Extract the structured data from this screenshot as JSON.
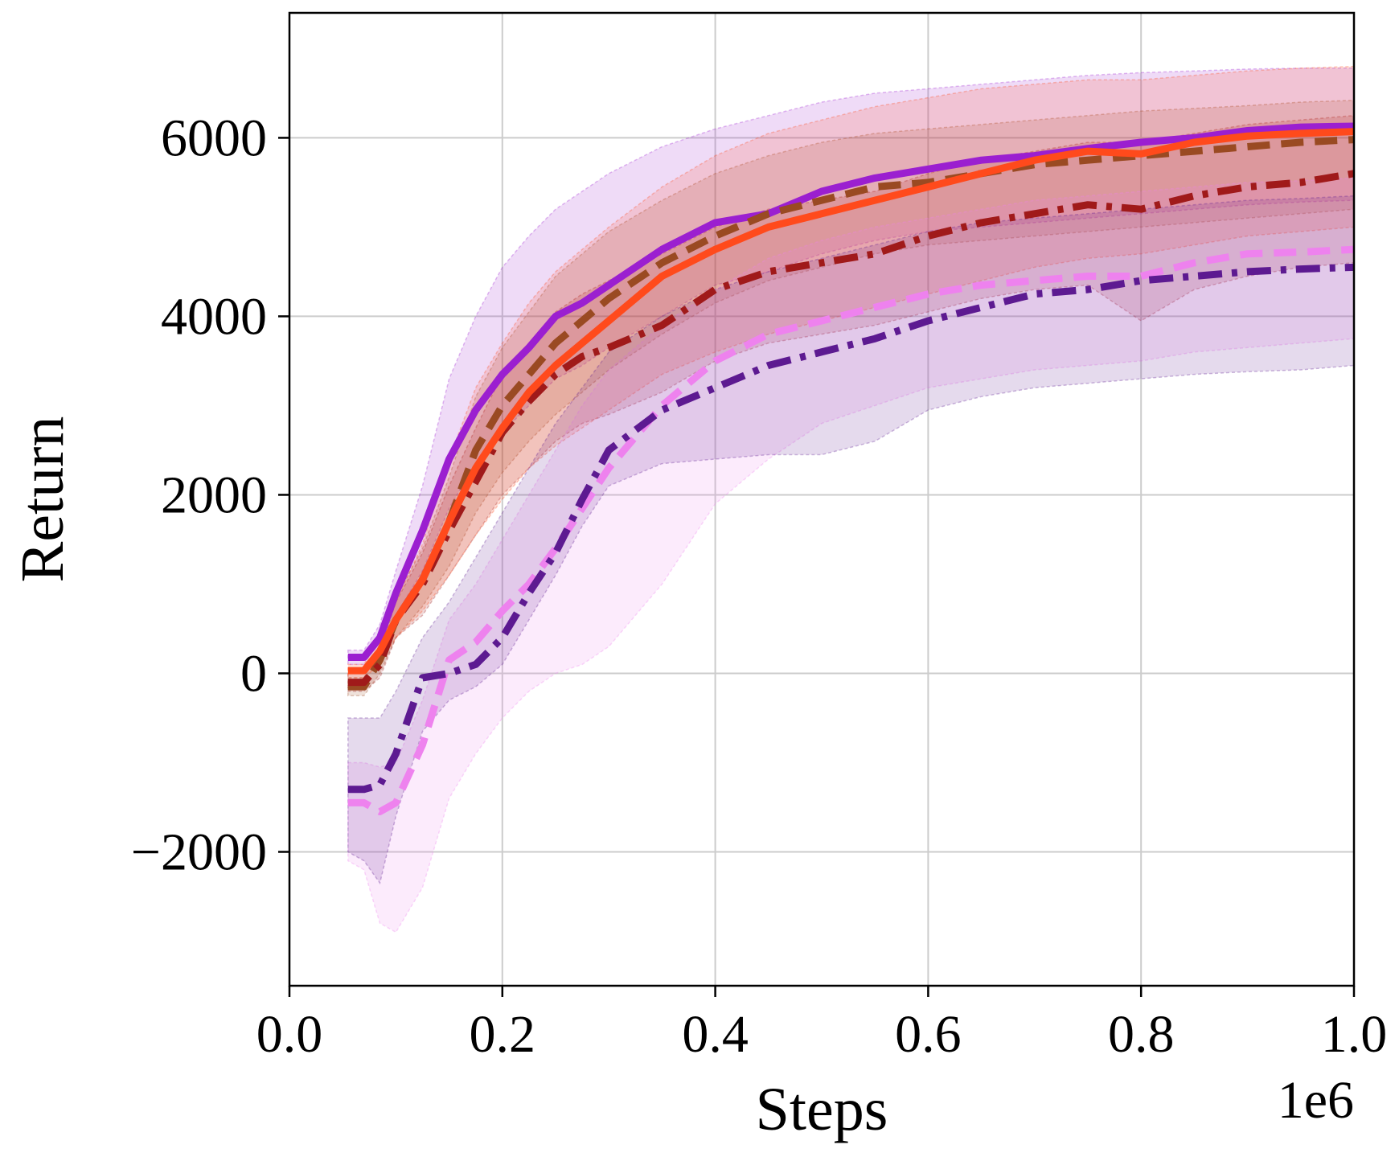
{
  "chart_data": {
    "type": "line",
    "title": "",
    "xlabel": "Steps",
    "ylabel": "Return",
    "x_offset_label": "1e6",
    "xlim": [
      0.0,
      1.0
    ],
    "ylim": [
      -3500,
      7400
    ],
    "xticks": [
      0.0,
      0.2,
      0.4,
      0.6,
      0.8,
      1.0
    ],
    "xtick_labels": [
      "0.0",
      "0.2",
      "0.4",
      "0.6",
      "0.8",
      "1.0"
    ],
    "yticks": [
      -2000,
      0,
      2000,
      4000,
      6000
    ],
    "ytick_labels": [
      "−2000",
      "0",
      "2000",
      "4000",
      "6000"
    ],
    "grid": true,
    "legend": "none",
    "x": [
      0.055,
      0.07,
      0.085,
      0.1,
      0.125,
      0.15,
      0.175,
      0.2,
      0.225,
      0.25,
      0.275,
      0.3,
      0.35,
      0.4,
      0.45,
      0.5,
      0.55,
      0.6,
      0.65,
      0.7,
      0.75,
      0.8,
      0.85,
      0.9,
      0.95,
      1.0
    ],
    "series": [
      {
        "name": "series-violet-solid",
        "color": "#9b1fd0",
        "line_style": "solid",
        "mean": [
          180,
          180,
          400,
          900,
          1600,
          2400,
          2950,
          3350,
          3650,
          4000,
          4150,
          4350,
          4750,
          5050,
          5150,
          5400,
          5550,
          5650,
          5750,
          5800,
          5880,
          5950,
          6000,
          6080,
          6120,
          6130
        ],
        "lower": [
          100,
          100,
          250,
          650,
          1150,
          1850,
          2350,
          2700,
          3000,
          3300,
          3450,
          3650,
          4000,
          4350,
          4500,
          4700,
          4850,
          4950,
          5000,
          5050,
          5100,
          5150,
          5200,
          5250,
          5280,
          5300
        ],
        "upper": [
          260,
          260,
          550,
          1150,
          2100,
          3300,
          4000,
          4550,
          4900,
          5200,
          5400,
          5600,
          5900,
          6100,
          6250,
          6400,
          6500,
          6550,
          6600,
          6650,
          6700,
          6730,
          6750,
          6770,
          6780,
          6780
        ]
      },
      {
        "name": "series-brown-dashed",
        "color": "#9a4a22",
        "line_style": "dashed",
        "mean": [
          -150,
          -150,
          150,
          600,
          1050,
          1700,
          2500,
          3000,
          3350,
          3700,
          3950,
          4200,
          4600,
          4900,
          5150,
          5300,
          5450,
          5500,
          5600,
          5700,
          5750,
          5800,
          5850,
          5900,
          5950,
          5980
        ],
        "lower": [
          -250,
          -250,
          0,
          400,
          750,
          1200,
          1800,
          2250,
          2600,
          2900,
          3150,
          3400,
          3800,
          4150,
          4400,
          4550,
          4700,
          4800,
          4850,
          4900,
          4950,
          5000,
          5050,
          5100,
          5150,
          5200
        ],
        "upper": [
          -50,
          -50,
          300,
          850,
          1400,
          2200,
          3100,
          3650,
          4050,
          4450,
          4700,
          4950,
          5300,
          5600,
          5800,
          5950,
          6050,
          6100,
          6150,
          6200,
          6250,
          6300,
          6330,
          6360,
          6400,
          6420
        ]
      },
      {
        "name": "series-darkred-dashdot",
        "color": "#a01a1a",
        "line_style": "dashdot",
        "mean": [
          -100,
          -100,
          100,
          600,
          1000,
          1600,
          2150,
          2700,
          3050,
          3350,
          3550,
          3650,
          3900,
          4300,
          4500,
          4600,
          4700,
          4900,
          5050,
          5150,
          5250,
          5200,
          5350,
          5450,
          5500,
          5600
        ],
        "lower": [
          -200,
          -200,
          -50,
          400,
          650,
          1100,
          1550,
          2000,
          2300,
          2600,
          2800,
          2900,
          3150,
          3500,
          3700,
          3800,
          3900,
          4050,
          4200,
          4300,
          4350,
          3950,
          4300,
          4450,
          4550,
          4600
        ],
        "upper": [
          0,
          0,
          250,
          800,
          1350,
          2100,
          2750,
          3350,
          3700,
          4050,
          4250,
          4400,
          4700,
          5000,
          5200,
          5300,
          5400,
          5600,
          5750,
          5850,
          5950,
          5950,
          6050,
          6150,
          6200,
          6250
        ]
      },
      {
        "name": "series-orange-solid",
        "color": "#ff4a1c",
        "line_style": "solid",
        "mean": [
          30,
          30,
          250,
          600,
          1050,
          1700,
          2300,
          2750,
          3150,
          3450,
          3700,
          3950,
          4450,
          4750,
          5000,
          5150,
          5300,
          5450,
          5600,
          5750,
          5850,
          5820,
          5950,
          6020,
          6050,
          6070
        ],
        "lower": [
          -50,
          -50,
          100,
          400,
          700,
          1100,
          1550,
          1950,
          2300,
          2550,
          2750,
          2950,
          3350,
          3600,
          3800,
          3950,
          4100,
          4250,
          4400,
          4550,
          4650,
          4700,
          4800,
          4900,
          4950,
          5000
        ],
        "upper": [
          100,
          100,
          400,
          800,
          1450,
          2400,
          3200,
          3700,
          4150,
          4500,
          4750,
          5000,
          5450,
          5800,
          6050,
          6200,
          6350,
          6450,
          6550,
          6600,
          6650,
          6650,
          6700,
          6750,
          6780,
          6800
        ]
      },
      {
        "name": "series-pink-dashed",
        "color": "#ee82ee",
        "line_style": "dashed",
        "mean": [
          -1450,
          -1450,
          -1550,
          -1450,
          -800,
          150,
          350,
          700,
          1000,
          1400,
          1850,
          2300,
          3000,
          3500,
          3800,
          3950,
          4100,
          4250,
          4350,
          4400,
          4450,
          4450,
          4600,
          4700,
          4720,
          4750
        ],
        "lower": [
          -2100,
          -2200,
          -2800,
          -2900,
          -2400,
          -1400,
          -900,
          -500,
          -200,
          0,
          100,
          300,
          1000,
          1900,
          2400,
          2800,
          3000,
          3200,
          3300,
          3400,
          3450,
          3500,
          3600,
          3650,
          3700,
          3750
        ],
        "upper": [
          -1000,
          -1000,
          -1050,
          -1000,
          -300,
          600,
          1000,
          1500,
          2000,
          2500,
          3000,
          3400,
          3900,
          4300,
          4650,
          4850,
          5000,
          5100,
          5200,
          5300,
          5350,
          5400,
          5450,
          5500,
          5520,
          5550
        ]
      },
      {
        "name": "series-indigo-dashdot",
        "color": "#5d1a91",
        "line_style": "dashdot",
        "mean": [
          -1300,
          -1300,
          -1250,
          -900,
          -50,
          0,
          100,
          400,
          900,
          1350,
          1950,
          2500,
          2950,
          3200,
          3450,
          3600,
          3750,
          3950,
          4100,
          4250,
          4300,
          4400,
          4450,
          4500,
          4530,
          4550
        ],
        "lower": [
          -2000,
          -2100,
          -2350,
          -1600,
          -650,
          -300,
          -150,
          100,
          600,
          1100,
          1650,
          2100,
          2350,
          2400,
          2450,
          2450,
          2600,
          2950,
          3100,
          3200,
          3250,
          3300,
          3350,
          3380,
          3400,
          3450
        ],
        "upper": [
          -500,
          -500,
          -500,
          -200,
          400,
          800,
          1300,
          1800,
          2300,
          2800,
          3200,
          3600,
          4000,
          4300,
          4500,
          4650,
          4800,
          4950,
          5050,
          5100,
          5150,
          5200,
          5250,
          5300,
          5320,
          5350
        ]
      }
    ]
  }
}
